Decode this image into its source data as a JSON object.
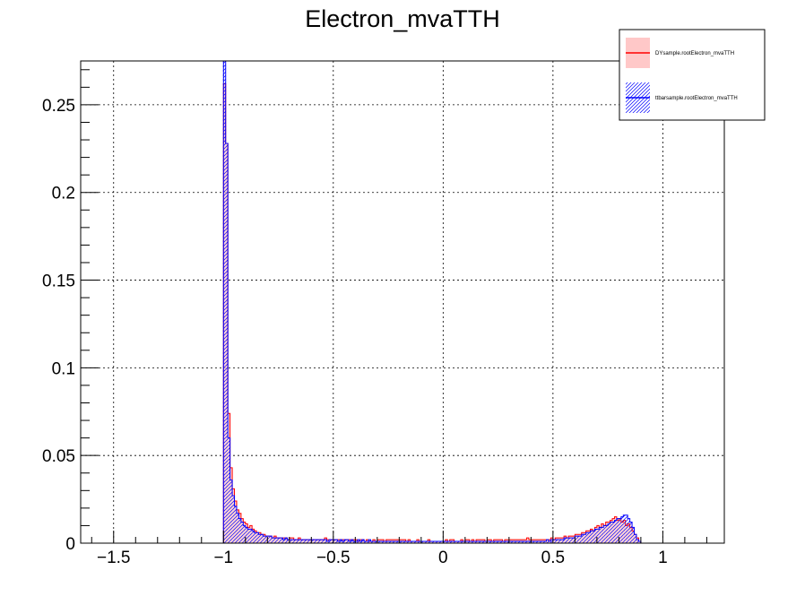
{
  "chart_data": {
    "type": "histogram",
    "title": "Electron_mvaTTH",
    "xlabel": "",
    "ylabel": "",
    "xlim": [
      -1.65,
      1.28
    ],
    "ylim": [
      0,
      0.275
    ],
    "grid": true,
    "legend_position": "top-right",
    "x_ticks": [
      {
        "value": -1.5,
        "label": "−1.5"
      },
      {
        "value": -1,
        "label": "−1"
      },
      {
        "value": -0.5,
        "label": "−0.5"
      },
      {
        "value": 0,
        "label": "0"
      },
      {
        "value": 0.5,
        "label": "0.5"
      },
      {
        "value": 1,
        "label": "1"
      }
    ],
    "y_ticks": [
      {
        "value": 0,
        "label": "0"
      },
      {
        "value": 0.05,
        "label": "0.05"
      },
      {
        "value": 0.1,
        "label": "0.1"
      },
      {
        "value": 0.15,
        "label": "0.15"
      },
      {
        "value": 0.2,
        "label": "0.2"
      },
      {
        "value": 0.25,
        "label": "0.25"
      }
    ],
    "bin_start": -1.0,
    "bin_width": 0.01,
    "series": [
      {
        "name": "DYsample.rootElectron_mvaTTH",
        "line_color": "#ff0000",
        "fill_color": "#ffc8c8",
        "fill_style": "solid",
        "values": [
          0.262,
          0.228,
          0.074,
          0.043,
          0.031,
          0.024,
          0.019,
          0.017,
          0.014,
          0.012,
          0.011,
          0.009,
          0.01,
          0.008,
          0.007,
          0.006,
          0.006,
          0.005,
          0.005,
          0.004,
          0.004,
          0.004,
          0.003,
          0.004,
          0.003,
          0.003,
          0.003,
          0.003,
          0.003,
          0.002,
          0.003,
          0.003,
          0.002,
          0.002,
          0.003,
          0.002,
          0.002,
          0.002,
          0.002,
          0.002,
          0.002,
          0.002,
          0.002,
          0.002,
          0.002,
          0.002,
          0.003,
          0.002,
          0.002,
          0.002,
          0.002,
          0.002,
          0.002,
          0.002,
          0.002,
          0.002,
          0.002,
          0.002,
          0.002,
          0.002,
          0.002,
          0.001,
          0.002,
          0.002,
          0.001,
          0.002,
          0.001,
          0.001,
          0.002,
          0.001,
          0.002,
          0.002,
          0.002,
          0.001,
          0.002,
          0.002,
          0.002,
          0.002,
          0.002,
          0.002,
          0.002,
          0.002,
          0.002,
          0.001,
          0.002,
          0.001,
          0.001,
          0.001,
          0.002,
          0.001,
          0.001,
          0.001,
          0.001,
          0.002,
          0.001,
          0.001,
          0.001,
          0.001,
          0.001,
          0.001,
          0.001,
          0.002,
          0.001,
          0.002,
          0.002,
          0.001,
          0.001,
          0.001,
          0.002,
          0.001,
          0.002,
          0.002,
          0.001,
          0.002,
          0.001,
          0.002,
          0.002,
          0.002,
          0.002,
          0.001,
          0.002,
          0.002,
          0.001,
          0.002,
          0.002,
          0.002,
          0.002,
          0.001,
          0.002,
          0.002,
          0.002,
          0.002,
          0.002,
          0.002,
          0.002,
          0.002,
          0.002,
          0.002,
          0.003,
          0.002,
          0.002,
          0.002,
          0.002,
          0.002,
          0.002,
          0.002,
          0.002,
          0.002,
          0.002,
          0.003,
          0.002,
          0.003,
          0.003,
          0.003,
          0.003,
          0.004,
          0.003,
          0.004,
          0.004,
          0.004,
          0.005,
          0.005,
          0.005,
          0.006,
          0.006,
          0.007,
          0.007,
          0.008,
          0.007,
          0.009,
          0.01,
          0.009,
          0.011,
          0.01,
          0.012,
          0.012,
          0.013,
          0.014,
          0.015,
          0.013,
          0.014,
          0.012,
          0.013,
          0.01,
          0.011,
          0.009,
          0.007,
          0.005,
          0.003,
          0.001
        ]
      },
      {
        "name": "ttbarsample.rootElectron_mvaTTH",
        "line_color": "#0000ff",
        "fill_color": "#0000ff",
        "fill_style": "hatched",
        "values": [
          0.275,
          0.228,
          0.06,
          0.036,
          0.027,
          0.021,
          0.017,
          0.014,
          0.012,
          0.01,
          0.009,
          0.008,
          0.008,
          0.007,
          0.006,
          0.006,
          0.005,
          0.005,
          0.004,
          0.004,
          0.004,
          0.004,
          0.003,
          0.003,
          0.003,
          0.003,
          0.003,
          0.002,
          0.003,
          0.002,
          0.002,
          0.002,
          0.002,
          0.002,
          0.002,
          0.002,
          0.002,
          0.002,
          0.002,
          0.002,
          0.002,
          0.002,
          0.002,
          0.002,
          0.002,
          0.002,
          0.002,
          0.001,
          0.002,
          0.002,
          0.002,
          0.002,
          0.001,
          0.002,
          0.001,
          0.002,
          0.002,
          0.001,
          0.002,
          0.001,
          0.001,
          0.002,
          0.001,
          0.002,
          0.001,
          0.001,
          0.002,
          0.001,
          0.001,
          0.001,
          0.001,
          0.001,
          0.001,
          0.001,
          0.001,
          0.001,
          0.001,
          0.001,
          0.001,
          0.001,
          0.001,
          0.001,
          0.001,
          0.001,
          0.001,
          0.001,
          0.001,
          0.001,
          0.001,
          0.001,
          0.001,
          0.001,
          0.001,
          0.001,
          0.001,
          0.001,
          0.001,
          0.001,
          0.001,
          0.001,
          0.001,
          0.001,
          0.001,
          0.001,
          0.001,
          0.001,
          0.001,
          0.001,
          0.001,
          0.001,
          0.001,
          0.001,
          0.001,
          0.001,
          0.001,
          0.001,
          0.001,
          0.001,
          0.001,
          0.001,
          0.001,
          0.001,
          0.001,
          0.001,
          0.001,
          0.001,
          0.001,
          0.001,
          0.001,
          0.001,
          0.001,
          0.001,
          0.001,
          0.001,
          0.001,
          0.001,
          0.001,
          0.001,
          0.001,
          0.001,
          0.001,
          0.001,
          0.001,
          0.001,
          0.001,
          0.001,
          0.001,
          0.002,
          0.001,
          0.002,
          0.002,
          0.002,
          0.002,
          0.002,
          0.002,
          0.003,
          0.003,
          0.003,
          0.003,
          0.003,
          0.004,
          0.004,
          0.004,
          0.005,
          0.005,
          0.006,
          0.006,
          0.007,
          0.007,
          0.008,
          0.008,
          0.009,
          0.009,
          0.01,
          0.01,
          0.011,
          0.012,
          0.012,
          0.013,
          0.014,
          0.014,
          0.015,
          0.016,
          0.016,
          0.014,
          0.012,
          0.009,
          0.005,
          0.002,
          0.001
        ]
      }
    ]
  }
}
